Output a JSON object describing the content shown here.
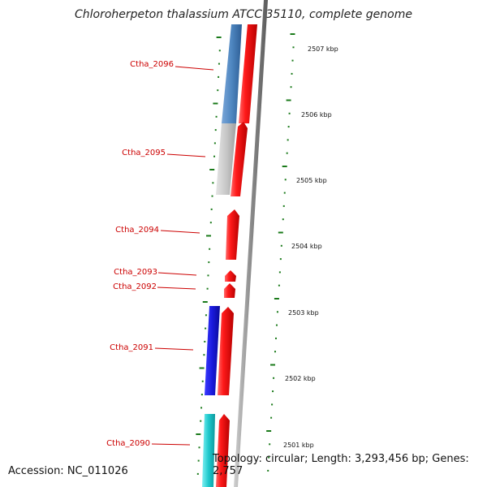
{
  "title": "Chloroherpeton thalassium ATCC 35110, complete genome",
  "footer": {
    "accession": "Accession: NC_011026",
    "summary": "Topology: circular; Length: 3,293,456 bp; Genes: 2,757"
  },
  "scale_labels": [
    "2507 kbp",
    "2506 kbp",
    "2505 kbp",
    "2504 kbp",
    "2503 kbp",
    "2502 kbp",
    "2501 kbp"
  ],
  "genes": [
    {
      "name": "Ctha_2096",
      "strand_color": "#e8141e",
      "ortholog_color": "#4e86c0"
    },
    {
      "name": "Ctha_2095",
      "strand_color": "#e8141e",
      "ortholog_color": "#c8c8c8"
    },
    {
      "name": "Ctha_2094",
      "strand_color": "#e8141e",
      "ortholog_color": null
    },
    {
      "name": "Ctha_2093",
      "strand_color": "#e8141e",
      "ortholog_color": null
    },
    {
      "name": "Ctha_2092",
      "strand_color": "#e8141e",
      "ortholog_color": null
    },
    {
      "name": "Ctha_2091",
      "strand_color": "#e8141e",
      "ortholog_color": "#1a1adc"
    },
    {
      "name": "Ctha_2090",
      "strand_color": "#e8141e",
      "ortholog_color": "#1ec8cc"
    }
  ],
  "colors": {
    "label": "#cc0000",
    "tick": "#1a7a1a",
    "backbone": "#8c8c8c"
  }
}
